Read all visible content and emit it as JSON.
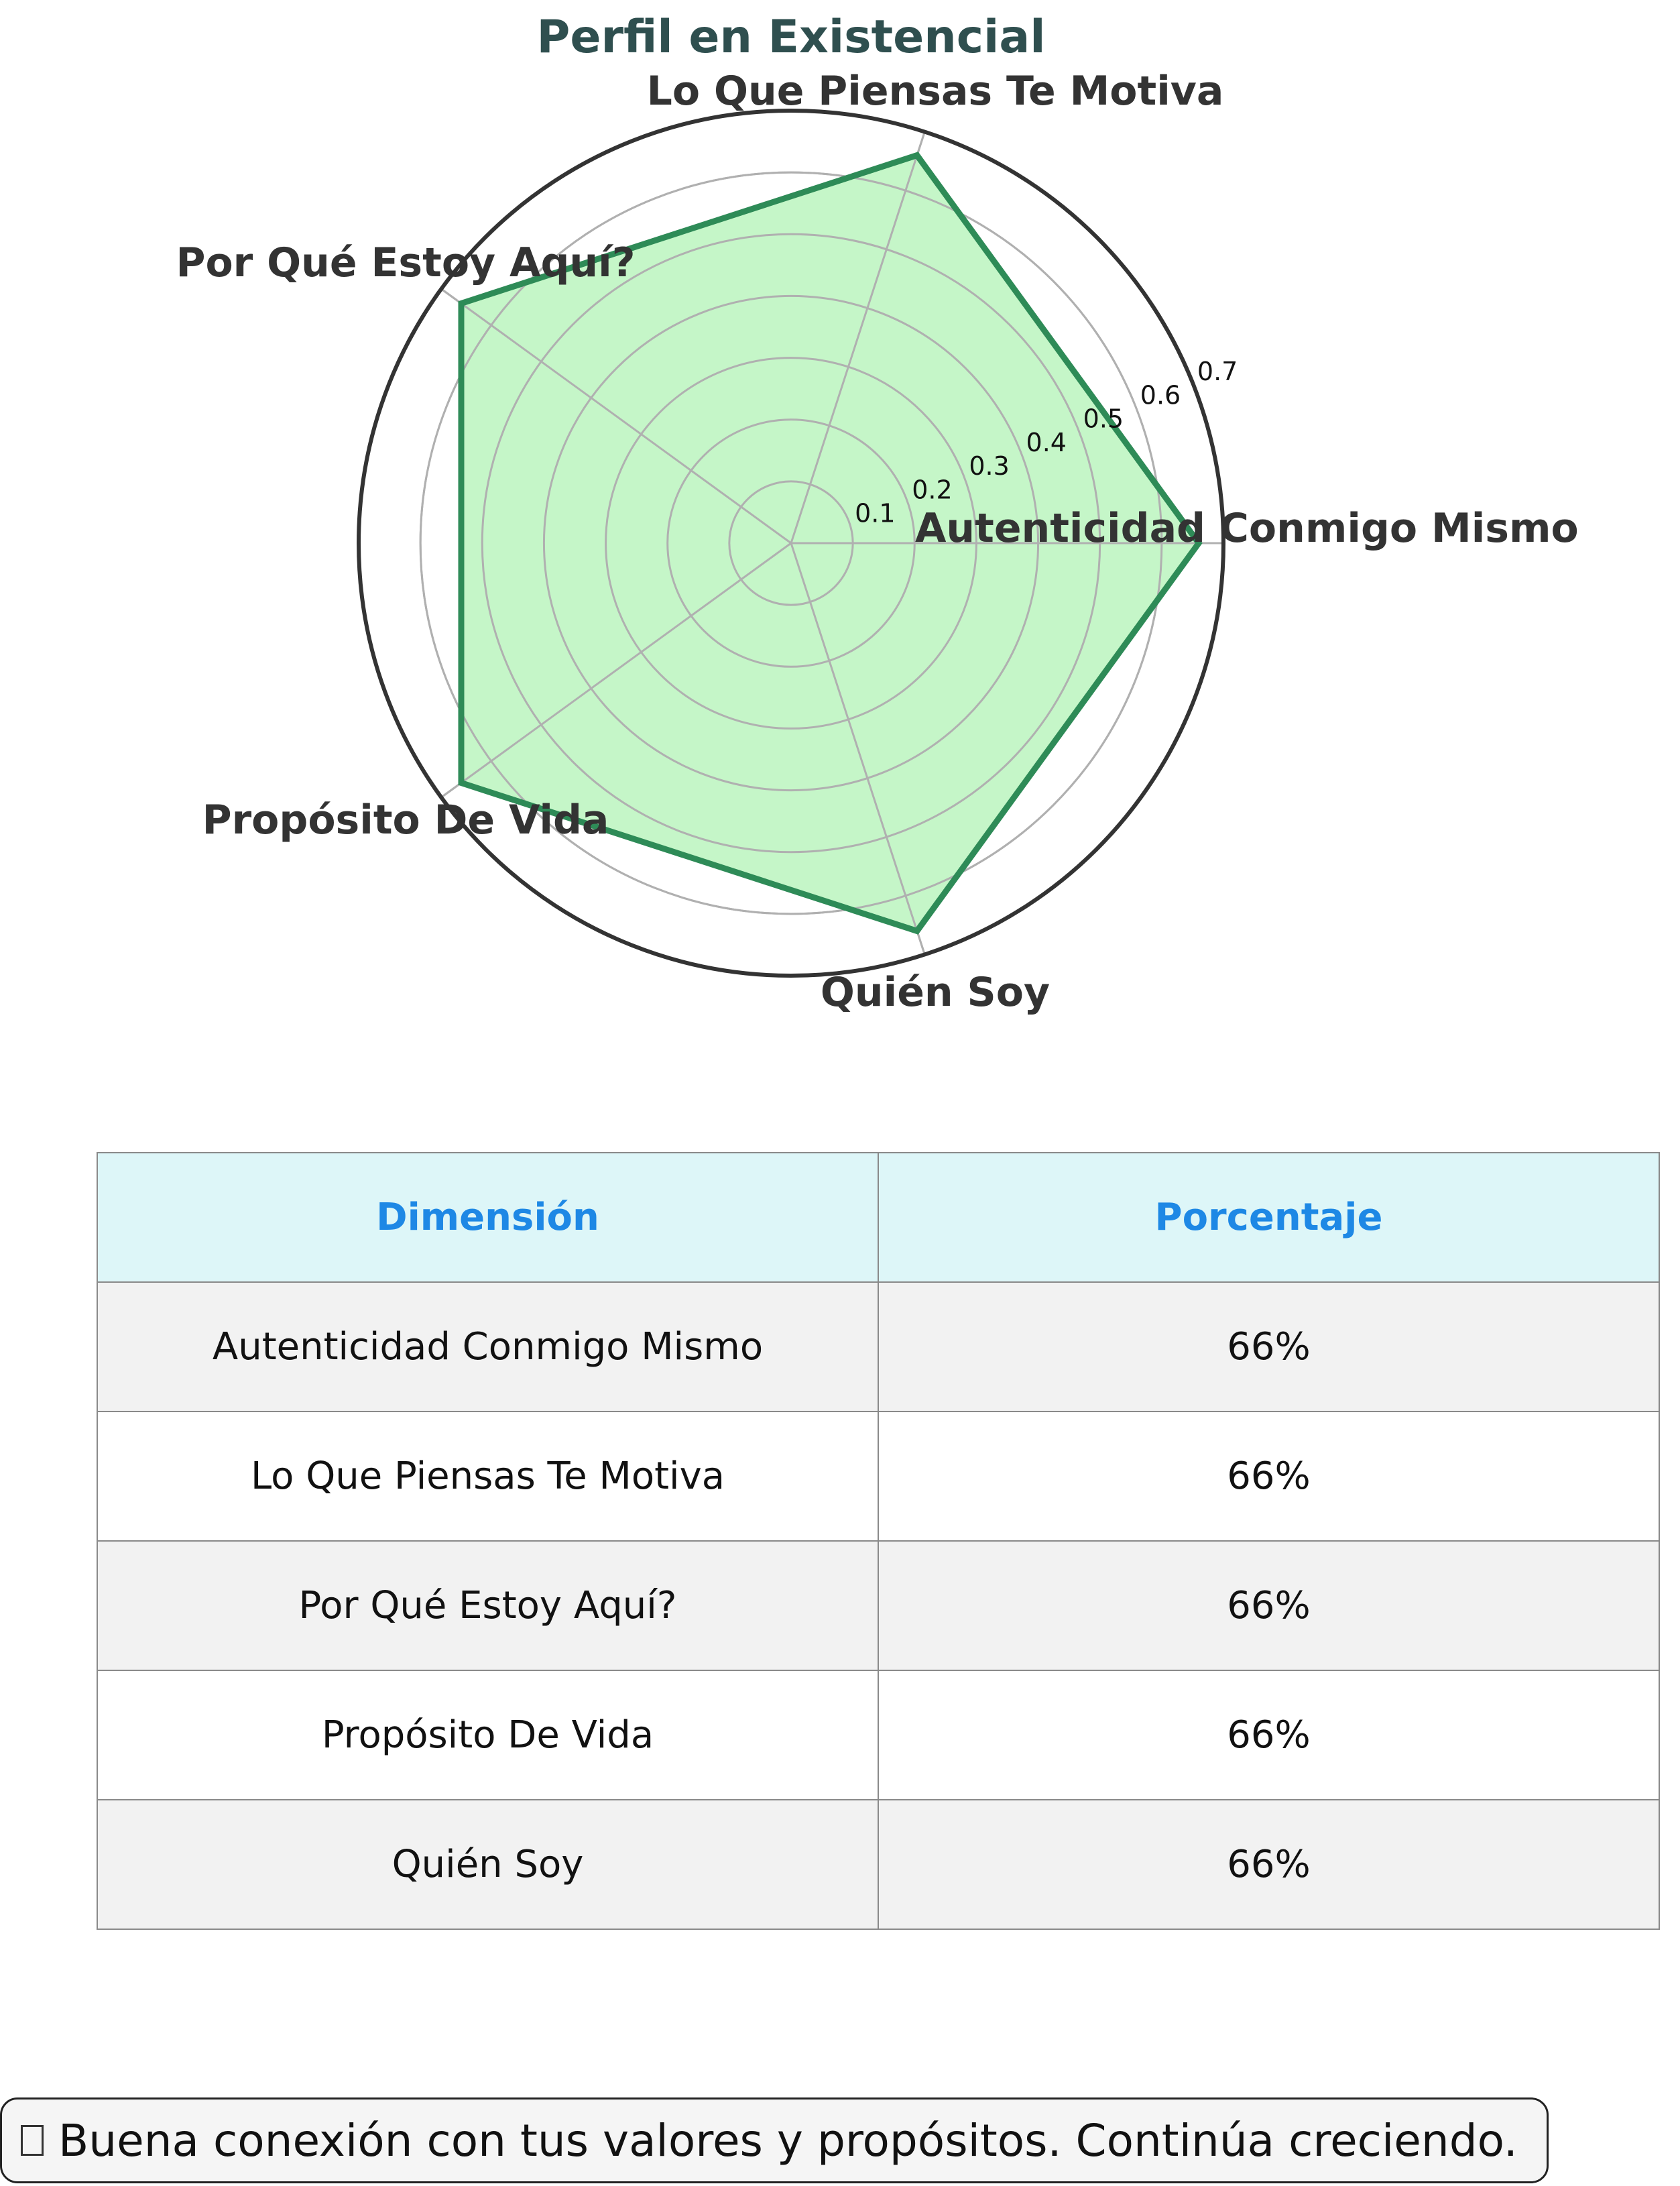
{
  "chart_data": {
    "type": "radar",
    "title": "Perfil en Existencial",
    "categories": [
      "Autenticidad Conmigo Mismo",
      "Lo Que Piensas Te Motiva",
      "Por Qué Estoy Aquí?",
      "Propósito De Vida",
      "Quién Soy"
    ],
    "values": [
      0.66,
      0.66,
      0.66,
      0.66,
      0.66
    ],
    "rlim": [
      0,
      0.7
    ],
    "rticks": [
      0.1,
      0.2,
      0.3,
      0.4,
      0.5,
      0.6,
      0.7
    ],
    "grid": true,
    "colors": {
      "line": "#2e8b57",
      "fill": "#c5f6c8",
      "title": "#2f4f4f",
      "frame": "#333333",
      "grid": "#b0b0b0"
    }
  },
  "table": {
    "headers": [
      "Dimensión",
      "Porcentaje"
    ],
    "rows": [
      [
        "Autenticidad Conmigo Mismo",
        "66%"
      ],
      [
        "Lo Que Piensas Te Motiva",
        "66%"
      ],
      [
        "Por Qué Estoy Aquí?",
        "66%"
      ],
      [
        "Propósito De Vida",
        "66%"
      ],
      [
        "Quién Soy",
        "66%"
      ]
    ]
  },
  "footer": {
    "message": "Buena conexión con tus valores y propósitos. Continúa creciendo.",
    "icon": "missing-glyph-icon"
  }
}
